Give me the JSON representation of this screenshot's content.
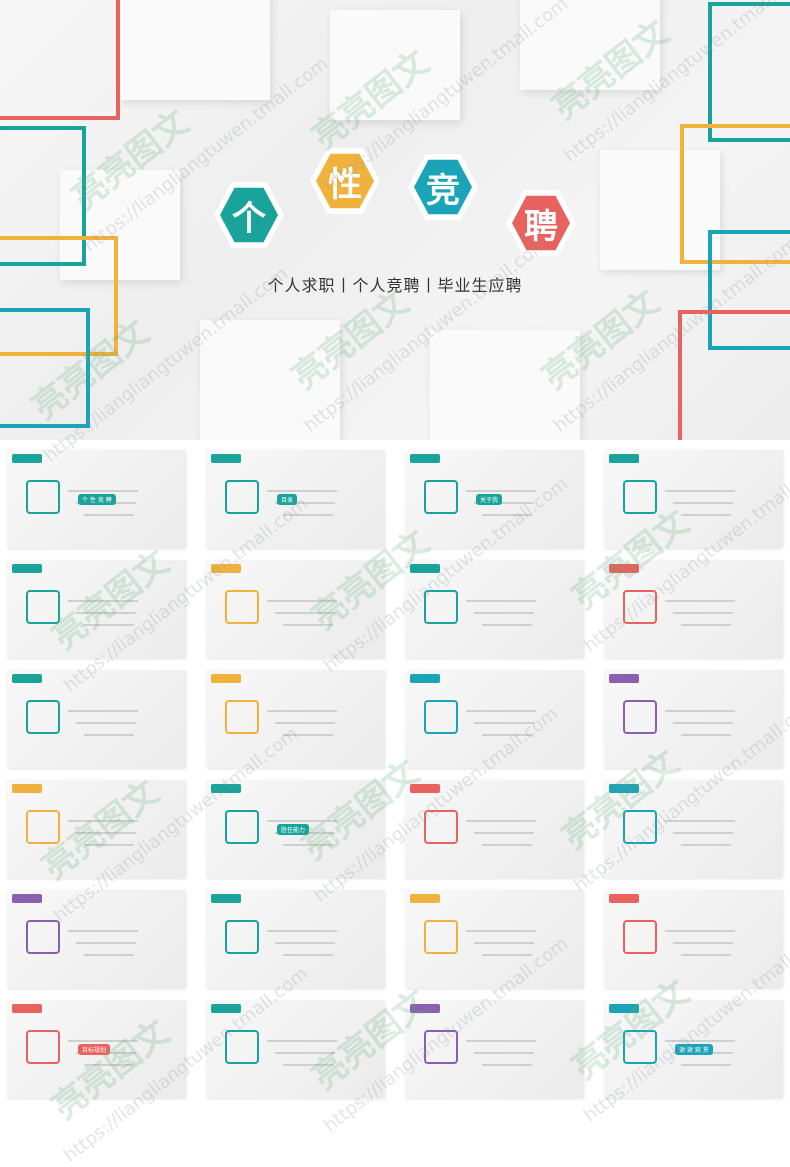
{
  "hero": {
    "title_chars": [
      "个",
      "性",
      "竞",
      "聘"
    ],
    "title_colors": [
      "#1aa39a",
      "#f0b23c",
      "#1ba3b8",
      "#e8625f"
    ],
    "subtitle": "个人求职丨个人竞聘丨毕业生应聘"
  },
  "thumbs": [
    {
      "label": "个 性 竞 聘",
      "accent": "#1aa39a"
    },
    {
      "label": "目录",
      "accent": "#1aa39a"
    },
    {
      "label": "关于我",
      "accent": "#1aa39a"
    },
    {
      "label": "",
      "accent": "#1aa39a"
    },
    {
      "label": "",
      "accent": "#1aa39a"
    },
    {
      "label": "",
      "accent": "#f0b23c"
    },
    {
      "label": "",
      "accent": "#1aa39a"
    },
    {
      "label": "",
      "accent": "#e8625f"
    },
    {
      "label": "",
      "accent": "#1aa39a"
    },
    {
      "label": "",
      "accent": "#f0b23c"
    },
    {
      "label": "",
      "accent": "#1ba3b8"
    },
    {
      "label": "",
      "accent": "#8b5fb0"
    },
    {
      "label": "",
      "accent": "#f0b23c"
    },
    {
      "label": "胜任能力",
      "accent": "#1aa39a"
    },
    {
      "label": "",
      "accent": "#e8625f"
    },
    {
      "label": "",
      "accent": "#1ba3b8"
    },
    {
      "label": "",
      "accent": "#8b5fb0"
    },
    {
      "label": "",
      "accent": "#1aa39a"
    },
    {
      "label": "",
      "accent": "#f0b23c"
    },
    {
      "label": "",
      "accent": "#e8625f"
    },
    {
      "label": "目标规划",
      "accent": "#e8625f"
    },
    {
      "label": "",
      "accent": "#1aa39a"
    },
    {
      "label": "",
      "accent": "#8b5fb0"
    },
    {
      "label": "谢 谢 观 赏",
      "accent": "#1ba3b8"
    }
  ],
  "watermark": {
    "brand": "亮亮图文",
    "url": "https://liangliangtuwen.tmall.com"
  }
}
